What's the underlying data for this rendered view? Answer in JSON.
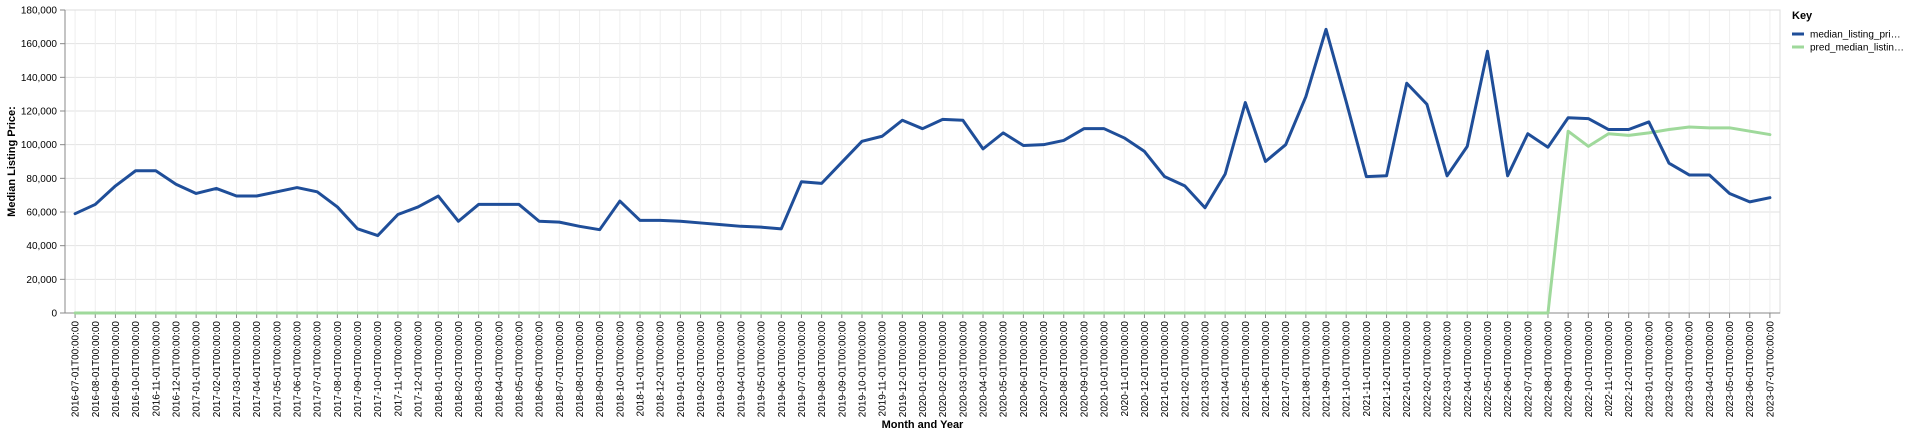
{
  "chart_data": {
    "type": "line",
    "xlabel": "Month and Year",
    "ylabel": "Median Listing Price:",
    "ylim": [
      0,
      180000
    ],
    "yticks": [
      0,
      20000,
      40000,
      60000,
      80000,
      100000,
      120000,
      140000,
      160000,
      180000
    ],
    "ytick_labels": [
      "0",
      "20,000",
      "40,000",
      "60,000",
      "80,000",
      "100,000",
      "120,000",
      "140,000",
      "160,000",
      "180,000"
    ],
    "grid": true,
    "legend": {
      "title": "Key",
      "position": "top-right"
    },
    "x": [
      "2016-07-01T00:00:00",
      "2016-08-01T00:00:00",
      "2016-09-01T00:00:00",
      "2016-10-01T00:00:00",
      "2016-11-01T00:00:00",
      "2016-12-01T00:00:00",
      "2017-01-01T00:00:00",
      "2017-02-01T00:00:00",
      "2017-03-01T00:00:00",
      "2017-04-01T00:00:00",
      "2017-05-01T00:00:00",
      "2017-06-01T00:00:00",
      "2017-07-01T00:00:00",
      "2017-08-01T00:00:00",
      "2017-09-01T00:00:00",
      "2017-10-01T00:00:00",
      "2017-11-01T00:00:00",
      "2017-12-01T00:00:00",
      "2018-01-01T00:00:00",
      "2018-02-01T00:00:00",
      "2018-03-01T00:00:00",
      "2018-04-01T00:00:00",
      "2018-05-01T00:00:00",
      "2018-06-01T00:00:00",
      "2018-07-01T00:00:00",
      "2018-08-01T00:00:00",
      "2018-09-01T00:00:00",
      "2018-10-01T00:00:00",
      "2018-11-01T00:00:00",
      "2018-12-01T00:00:00",
      "2019-01-01T00:00:00",
      "2019-02-01T00:00:00",
      "2019-03-01T00:00:00",
      "2019-04-01T00:00:00",
      "2019-05-01T00:00:00",
      "2019-06-01T00:00:00",
      "2019-07-01T00:00:00",
      "2019-08-01T00:00:00",
      "2019-09-01T00:00:00",
      "2019-10-01T00:00:00",
      "2019-11-01T00:00:00",
      "2019-12-01T00:00:00",
      "2020-01-01T00:00:00",
      "2020-02-01T00:00:00",
      "2020-03-01T00:00:00",
      "2020-04-01T00:00:00",
      "2020-05-01T00:00:00",
      "2020-06-01T00:00:00",
      "2020-07-01T00:00:00",
      "2020-08-01T00:00:00",
      "2020-09-01T00:00:00",
      "2020-10-01T00:00:00",
      "2020-11-01T00:00:00",
      "2020-12-01T00:00:00",
      "2021-01-01T00:00:00",
      "2021-02-01T00:00:00",
      "2021-03-01T00:00:00",
      "2021-04-01T00:00:00",
      "2021-05-01T00:00:00",
      "2021-06-01T00:00:00",
      "2021-07-01T00:00:00",
      "2021-08-01T00:00:00",
      "2021-09-01T00:00:00",
      "2021-10-01T00:00:00",
      "2021-11-01T00:00:00",
      "2021-12-01T00:00:00",
      "2022-01-01T00:00:00",
      "2022-02-01T00:00:00",
      "2022-03-01T00:00:00",
      "2022-04-01T00:00:00",
      "2022-05-01T00:00:00",
      "2022-06-01T00:00:00",
      "2022-07-01T00:00:00",
      "2022-08-01T00:00:00",
      "2022-09-01T00:00:00",
      "2022-10-01T00:00:00",
      "2022-11-01T00:00:00",
      "2022-12-01T00:00:00",
      "2023-01-01T00:00:00",
      "2023-02-01T00:00:00",
      "2023-03-01T00:00:00",
      "2023-04-01T00:00:00",
      "2023-05-01T00:00:00",
      "2023-06-01T00:00:00",
      "2023-07-01T00:00:00"
    ],
    "series": [
      {
        "name": "median_listing_pri…",
        "color": "#1f4e99",
        "values": [
          59000,
          64500,
          75500,
          84500,
          84500,
          76500,
          71000,
          74000,
          69500,
          69500,
          72000,
          74500,
          72000,
          63000,
          50000,
          46000,
          58500,
          63000,
          69500,
          54500,
          64500,
          64500,
          64500,
          54500,
          54000,
          51500,
          49500,
          66500,
          55000,
          55000,
          54500,
          53500,
          52500,
          51500,
          51000,
          50000,
          78000,
          77000,
          89500,
          102000,
          105000,
          114500,
          109500,
          115000,
          114500,
          97500,
          107000,
          99500,
          100000,
          102500,
          109500,
          109500,
          104000,
          96000,
          81000,
          75500,
          62500,
          82500,
          125000,
          90000,
          100000,
          128500,
          168500,
          125500,
          81000,
          81500,
          136500,
          124000,
          81500,
          99000,
          155500,
          81500,
          106500,
          98500,
          116000,
          115500,
          109000,
          109000,
          113500,
          89000,
          82000,
          82000,
          71000,
          66000,
          68500
        ]
      },
      {
        "name": "pred_median_listin…",
        "color": "#9fd99b",
        "values": [
          0,
          0,
          0,
          0,
          0,
          0,
          0,
          0,
          0,
          0,
          0,
          0,
          0,
          0,
          0,
          0,
          0,
          0,
          0,
          0,
          0,
          0,
          0,
          0,
          0,
          0,
          0,
          0,
          0,
          0,
          0,
          0,
          0,
          0,
          0,
          0,
          0,
          0,
          0,
          0,
          0,
          0,
          0,
          0,
          0,
          0,
          0,
          0,
          0,
          0,
          0,
          0,
          0,
          0,
          0,
          0,
          0,
          0,
          0,
          0,
          0,
          0,
          0,
          0,
          0,
          0,
          0,
          0,
          0,
          0,
          0,
          0,
          0,
          0,
          108000,
          99000,
          106500,
          105500,
          107000,
          109000,
          110500,
          110000,
          110000,
          108000,
          106000
        ]
      }
    ]
  }
}
